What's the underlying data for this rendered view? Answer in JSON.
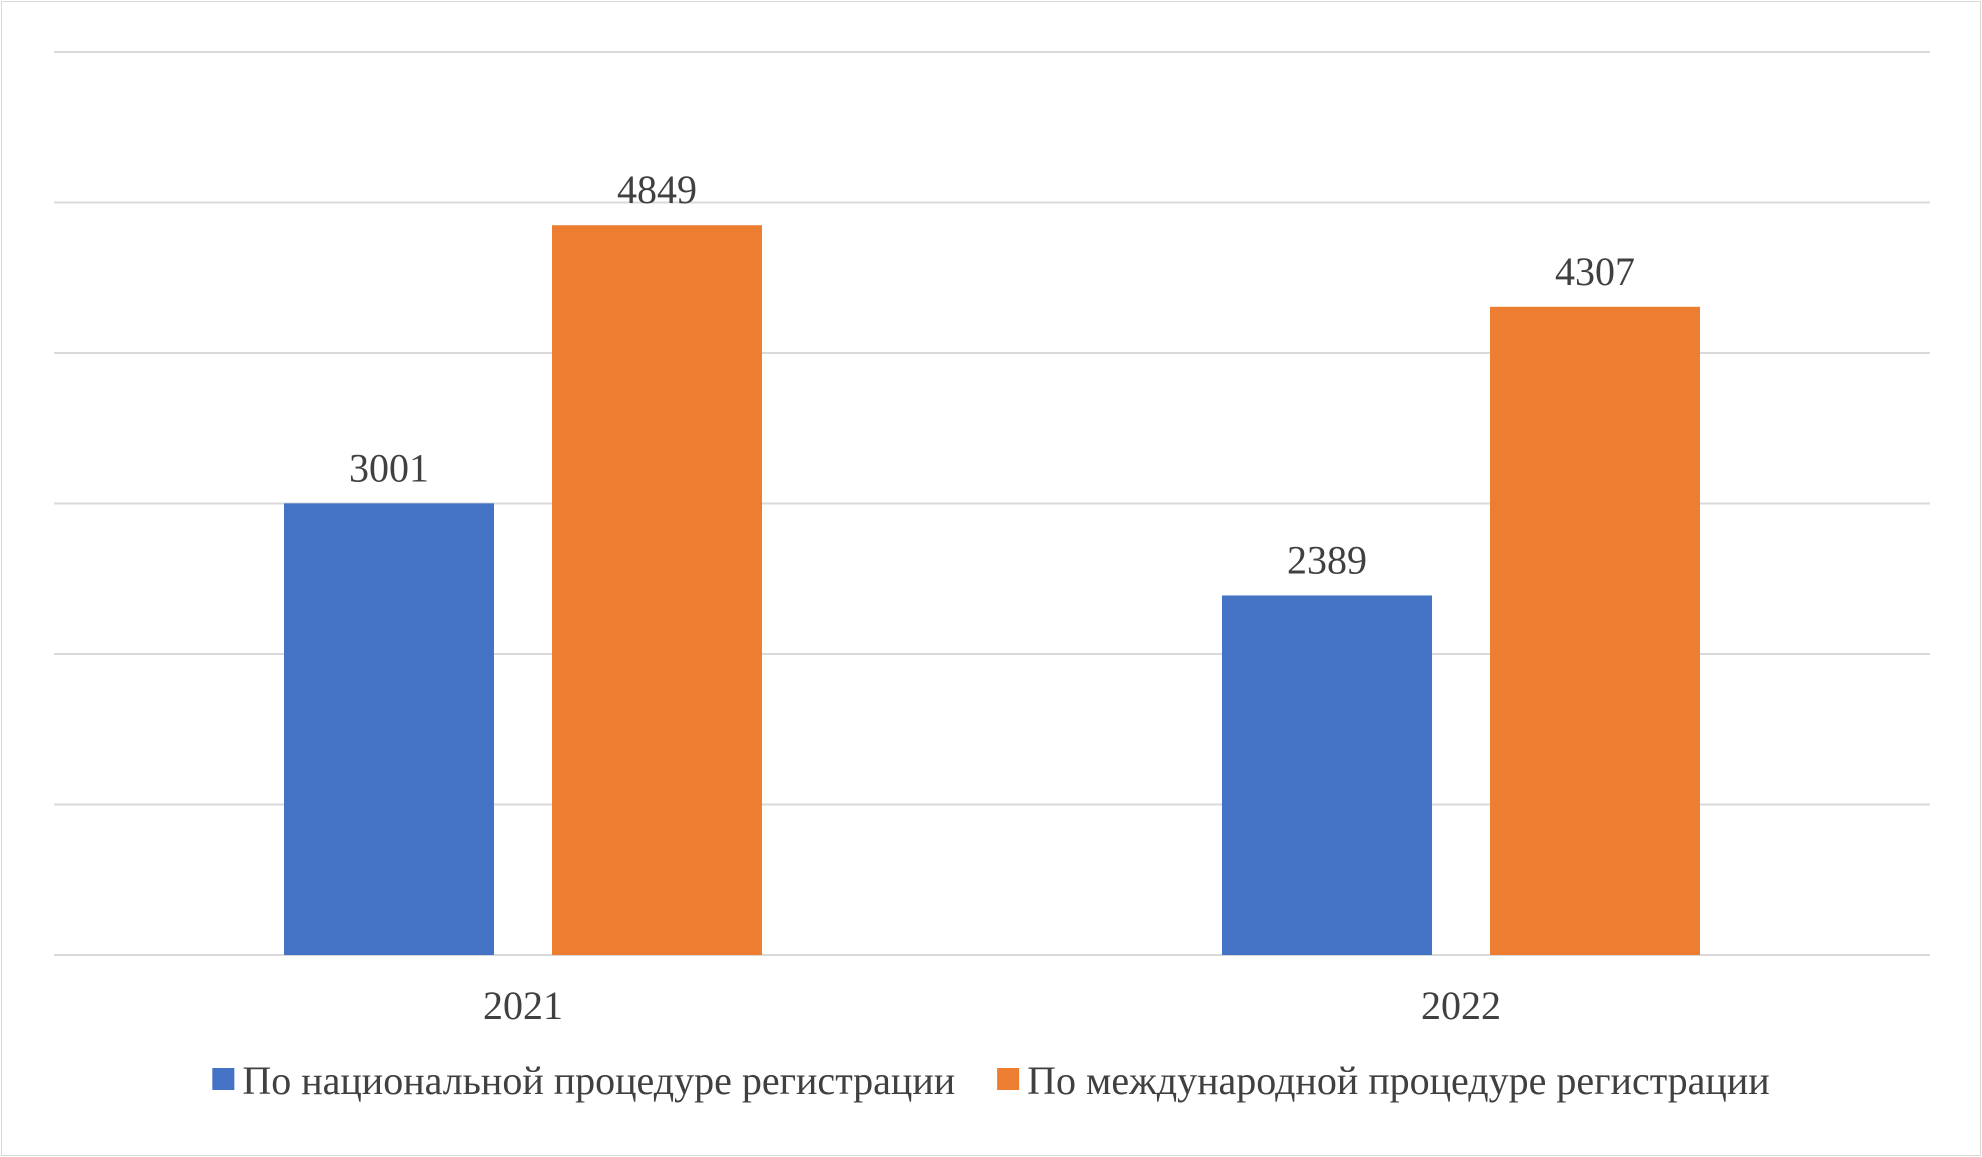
{
  "chart_data": {
    "type": "bar",
    "categories": [
      "2021",
      "2022"
    ],
    "series": [
      {
        "name": "По национальной процедуре регистрации",
        "color": "#4472C4",
        "values": [
          3001,
          2389
        ]
      },
      {
        "name": "По международной процедуре регистрации",
        "color": "#ED7D31",
        "values": [
          4849,
          4307
        ]
      }
    ],
    "ylim": [
      0,
      6000
    ],
    "ytick_step": 1000,
    "y_axis_labels_shown": false,
    "grid": true,
    "legend": "bottom",
    "data_labels": true
  }
}
